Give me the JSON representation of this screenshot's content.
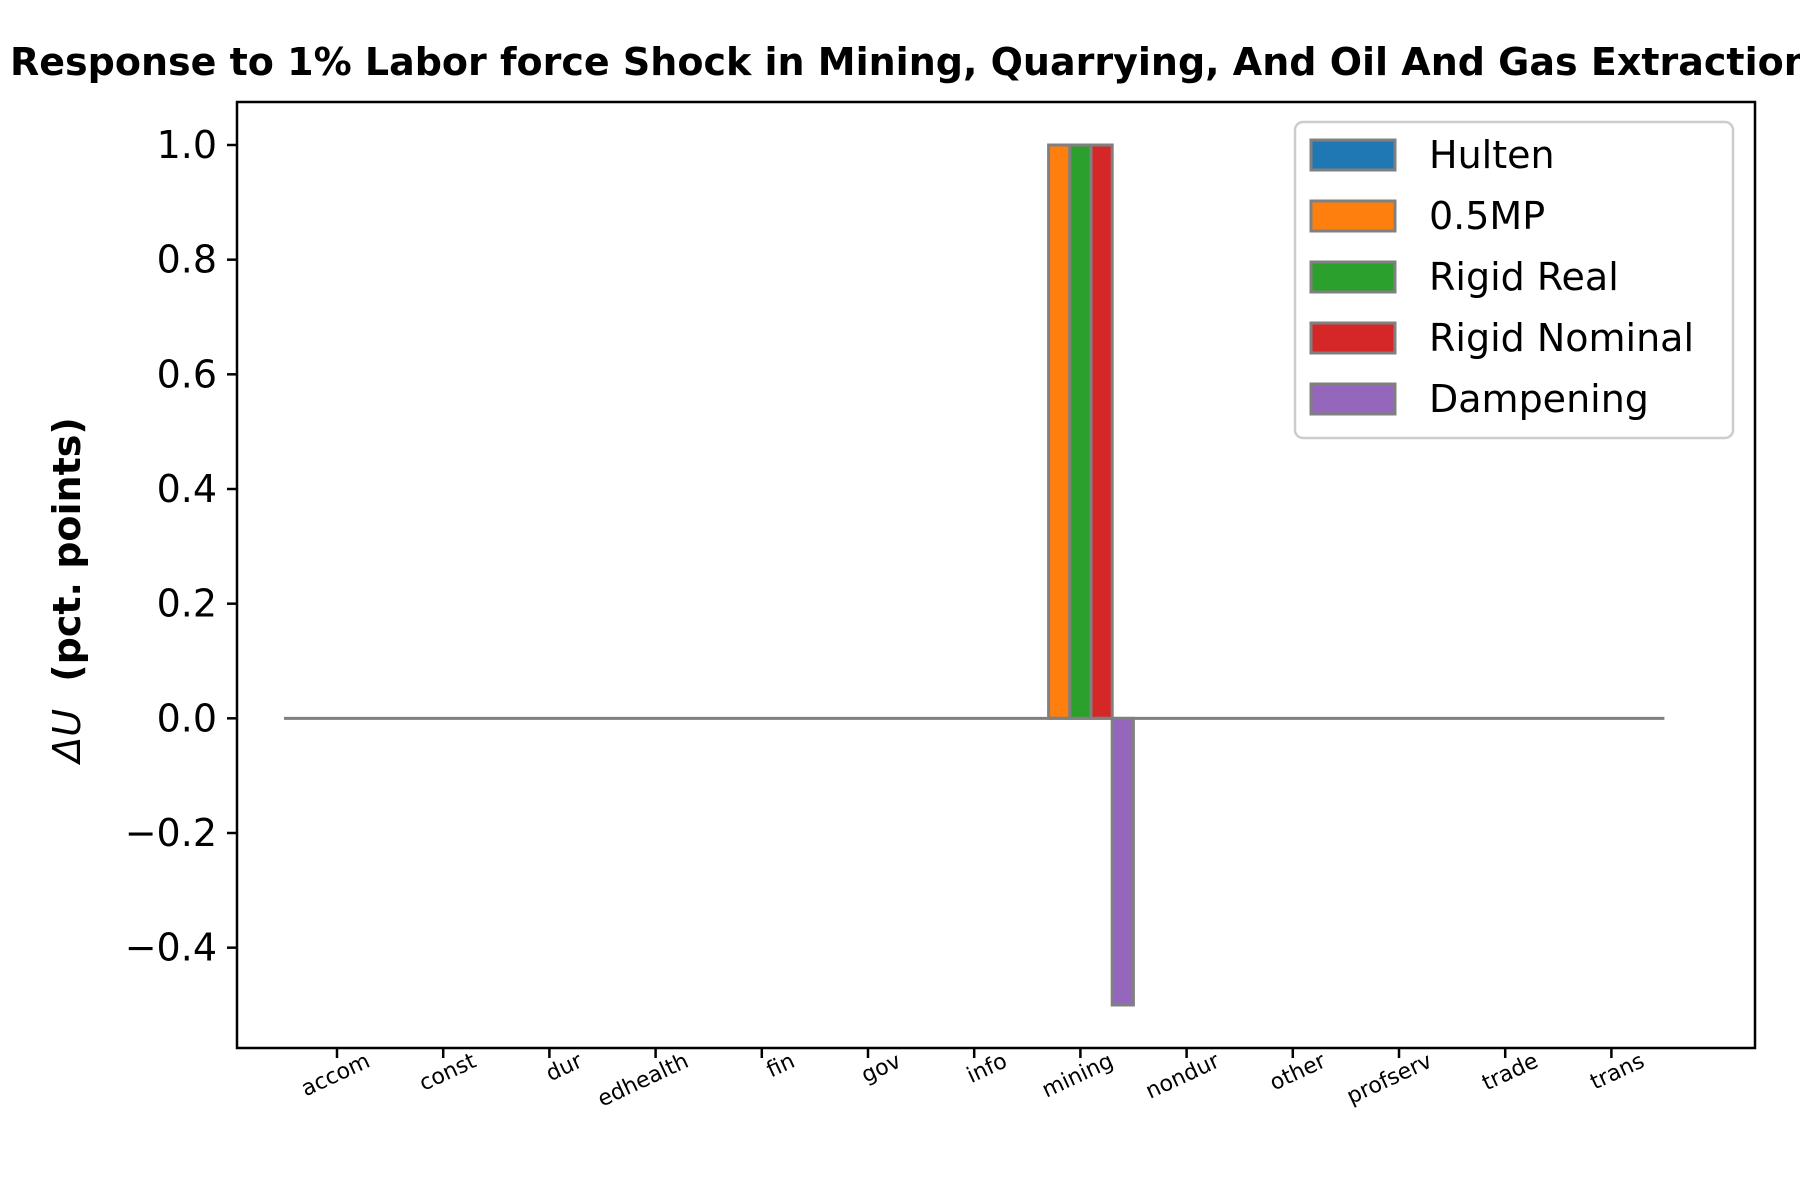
{
  "chart_data": {
    "type": "bar",
    "title": "Response to 1% Labor force Shock in Mining, Quarrying, And Oil And Gas Extraction",
    "xlabel": "",
    "ylabel": "(pct. points)",
    "ylabel_symbol": "ΔU",
    "ylim": [
      -0.575,
      1.075
    ],
    "yticks": [
      "−0.4",
      "−0.2",
      "0.0",
      "0.2",
      "0.4",
      "0.6",
      "0.8",
      "1.0"
    ],
    "ytick_values": [
      -0.4,
      -0.2,
      0.0,
      0.2,
      0.4,
      0.6,
      0.8,
      1.0
    ],
    "categories": [
      "accom",
      "const",
      "dur",
      "edhealth",
      "fin",
      "gov",
      "info",
      "mining",
      "nondur",
      "other",
      "profserv",
      "trade",
      "trans"
    ],
    "grid": false,
    "legend_position": "top-right",
    "series": [
      {
        "name": "Hulten",
        "color": "#1f77b4",
        "values": [
          0,
          0,
          0,
          0,
          0,
          0,
          0,
          0,
          0,
          0,
          0,
          0,
          0
        ]
      },
      {
        "name": "0.5MP",
        "color": "#ff7f0e",
        "values": [
          0,
          0,
          0,
          0,
          0,
          0,
          0,
          1.0,
          0,
          0,
          0,
          0,
          0
        ]
      },
      {
        "name": "Rigid Real",
        "color": "#2ca02c",
        "values": [
          0,
          0,
          0,
          0,
          0,
          0,
          0,
          1.0,
          0,
          0,
          0,
          0,
          0
        ]
      },
      {
        "name": "Rigid Nominal",
        "color": "#d62728",
        "values": [
          0,
          0,
          0,
          0,
          0,
          0,
          0,
          1.0,
          0,
          0,
          0,
          0,
          0
        ]
      },
      {
        "name": "Dampening",
        "color": "#9467bd",
        "values": [
          0,
          0,
          0,
          0,
          0,
          0,
          0,
          -0.5,
          0,
          0,
          0,
          0,
          0
        ]
      }
    ]
  }
}
